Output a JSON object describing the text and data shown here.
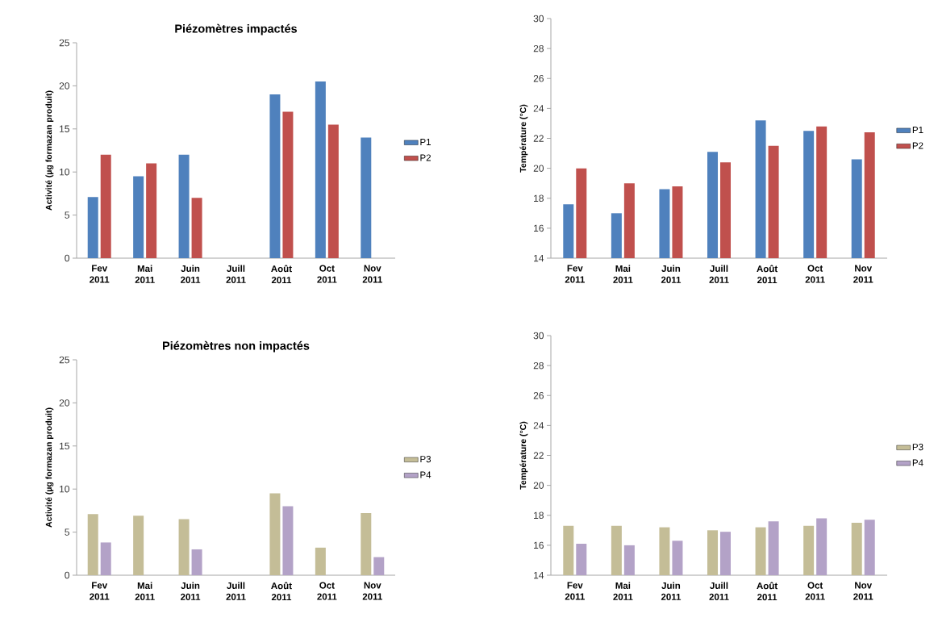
{
  "chart_data": [
    {
      "type": "bar",
      "title": "Piézomètres impactés",
      "ylabel": "Activité (µg formazan produit)",
      "categories": [
        "Fev 2011",
        "Mai 2011",
        "Juin 2011",
        "Juill 2011",
        "Août 2011",
        "Oct 2011",
        "Nov 2011"
      ],
      "ylim": [
        0,
        25
      ],
      "yticks": [
        0,
        5,
        10,
        15,
        20,
        25
      ],
      "legend": "right",
      "series": [
        {
          "name": "P1",
          "color": "#4f81bd",
          "values": [
            7.1,
            9.5,
            12,
            null,
            19,
            20.5,
            14
          ]
        },
        {
          "name": "P2",
          "color": "#c0504d",
          "values": [
            12,
            11,
            7,
            null,
            17,
            15.5,
            null
          ]
        }
      ]
    },
    {
      "type": "bar",
      "ylabel": "Température (°C)",
      "categories": [
        "Fev 2011",
        "Mai 2011",
        "Juin 2011",
        "Juill 2011",
        "Août 2011",
        "Oct 2011",
        "Nov 2011"
      ],
      "ylim": [
        14,
        30
      ],
      "yticks": [
        14,
        16,
        18,
        20,
        22,
        24,
        26,
        28,
        30
      ],
      "legend": "right",
      "series": [
        {
          "name": "P1",
          "color": "#4f81bd",
          "values": [
            17.6,
            17.0,
            18.6,
            21.1,
            23.2,
            22.5,
            20.6
          ]
        },
        {
          "name": "P2",
          "color": "#c0504d",
          "values": [
            20.0,
            19.0,
            18.8,
            20.4,
            21.5,
            22.8,
            22.4
          ]
        }
      ]
    },
    {
      "type": "bar",
      "title": "Piézomètres non impactés",
      "ylabel": "Activité (µg formazan produit)",
      "categories": [
        "Fev 2011",
        "Mai 2011",
        "Juin 2011",
        "Juill 2011",
        "Août 2011",
        "Oct 2011",
        "Nov 2011"
      ],
      "ylim": [
        0,
        25
      ],
      "yticks": [
        0,
        5,
        10,
        15,
        20,
        25
      ],
      "legend": "right",
      "series": [
        {
          "name": "P3",
          "color": "#c4bd97",
          "values": [
            7.1,
            6.9,
            6.5,
            null,
            9.5,
            3.2,
            7.2
          ]
        },
        {
          "name": "P4",
          "color": "#b3a2c7",
          "values": [
            3.8,
            null,
            3.0,
            null,
            8.0,
            null,
            2.1
          ]
        }
      ]
    },
    {
      "type": "bar",
      "ylabel": "Température (°C)",
      "categories": [
        "Fev 2011",
        "Mai 2011",
        "Juin 2011",
        "Juill 2011",
        "Août 2011",
        "Oct 2011",
        "Nov 2011"
      ],
      "ylim": [
        14,
        30
      ],
      "yticks": [
        14,
        16,
        18,
        20,
        22,
        24,
        26,
        28,
        30
      ],
      "legend": "right",
      "series": [
        {
          "name": "P3",
          "color": "#c4bd97",
          "values": [
            17.3,
            17.3,
            17.2,
            17.0,
            17.2,
            17.3,
            17.5
          ]
        },
        {
          "name": "P4",
          "color": "#b3a2c7",
          "values": [
            16.1,
            16.0,
            16.3,
            16.9,
            17.6,
            17.8,
            17.7
          ]
        }
      ]
    }
  ]
}
